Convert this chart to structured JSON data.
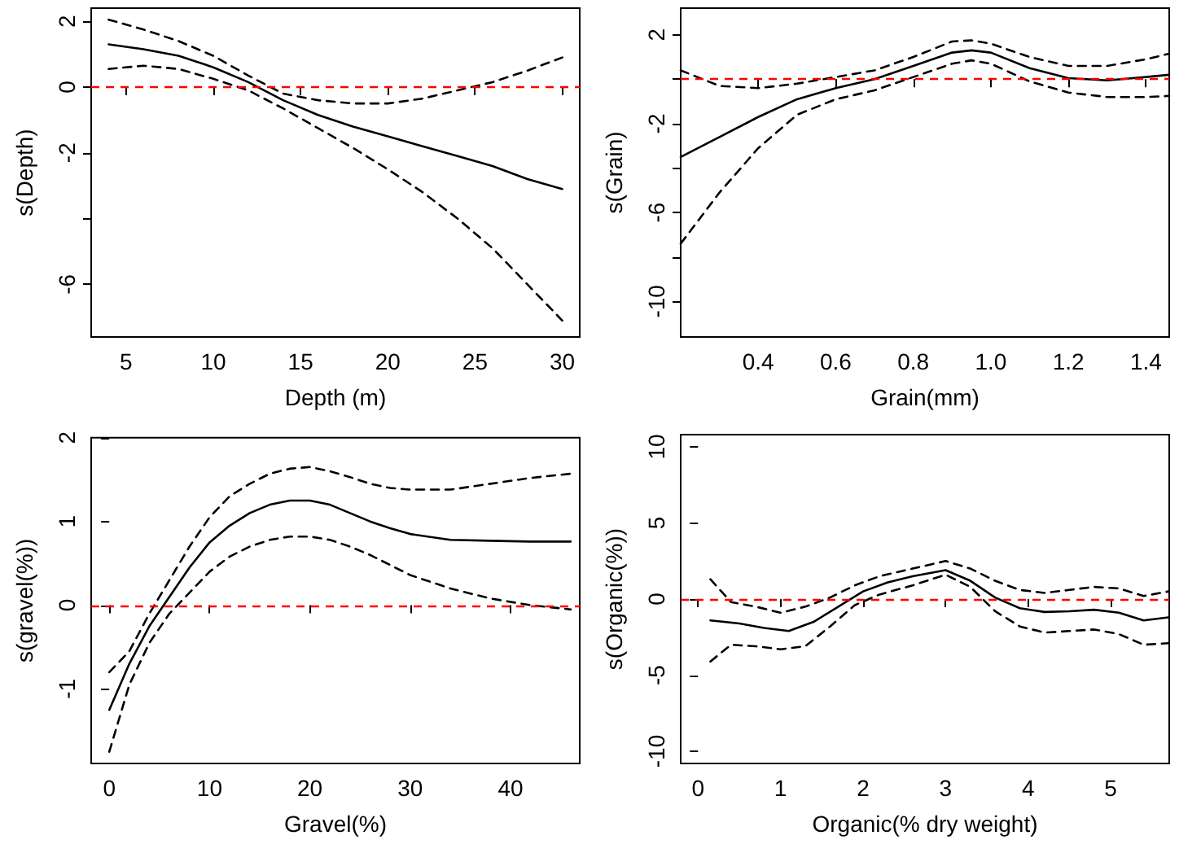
{
  "chart_data": [
    {
      "type": "line",
      "xlabel": "Depth (m)",
      "ylabel": "s(Depth)",
      "xlim": [
        3,
        31
      ],
      "ylim": [
        -7.6,
        2.4
      ],
      "xticks": [
        5,
        10,
        15,
        20,
        25,
        30
      ],
      "yticks": [
        2,
        0,
        -2,
        {
          "value": -4,
          "label": null
        },
        -6
      ],
      "series": [
        {
          "color": "#000000",
          "line_style": "solid",
          "x": [
            4,
            6,
            8,
            10,
            12,
            14,
            16,
            18,
            20,
            22,
            24,
            26,
            28,
            30
          ],
          "values": [
            1.3,
            1.15,
            0.95,
            0.6,
            0.15,
            -0.4,
            -0.85,
            -1.2,
            -1.5,
            -1.8,
            -2.1,
            -2.4,
            -2.8,
            -3.1
          ]
        },
        {
          "color": "#000000",
          "line_style": "dashed",
          "x": [
            4,
            6,
            8,
            10,
            12,
            14,
            16,
            18,
            20,
            22,
            24,
            26,
            28,
            30
          ],
          "values": [
            2.05,
            1.75,
            1.4,
            0.95,
            0.35,
            -0.2,
            -0.4,
            -0.5,
            -0.5,
            -0.35,
            -0.1,
            0.15,
            0.5,
            0.9
          ]
        },
        {
          "color": "#000000",
          "line_style": "dashed",
          "x": [
            4,
            6,
            8,
            10,
            12,
            14,
            16,
            18,
            20,
            22,
            24,
            26,
            28,
            30
          ],
          "values": [
            0.55,
            0.65,
            0.55,
            0.25,
            -0.1,
            -0.65,
            -1.25,
            -1.85,
            -2.5,
            -3.2,
            -4.0,
            -4.9,
            -6.0,
            -7.1
          ]
        }
      ],
      "ref_lines": [
        {
          "axis": "y",
          "value": 0,
          "color": "#ff0000",
          "line_style": "dashed"
        }
      ]
    },
    {
      "type": "line",
      "xlabel": "Grain(mm)",
      "ylabel": "s(Grain)",
      "xlim": [
        0.2,
        1.46
      ],
      "ylim": [
        -11.6,
        3.2
      ],
      "xticks": [
        0.4,
        0.6,
        0.8,
        {
          "value": 1,
          "label": "1.0"
        },
        1.2,
        1.4
      ],
      "yticks": [
        2,
        {
          "value": 0,
          "label": null
        },
        -2,
        {
          "value": -4,
          "label": null
        },
        -6,
        {
          "value": -8,
          "label": null
        },
        -10
      ],
      "series": [
        {
          "color": "#000000",
          "line_style": "solid",
          "x": [
            0.2,
            0.3,
            0.4,
            0.5,
            0.6,
            0.7,
            0.8,
            0.9,
            0.95,
            1.0,
            1.1,
            1.2,
            1.3,
            1.4,
            1.46
          ],
          "values": [
            -3.5,
            -2.6,
            -1.7,
            -0.9,
            -0.4,
            0.0,
            0.6,
            1.2,
            1.3,
            1.2,
            0.5,
            0.05,
            -0.05,
            0.1,
            0.2
          ]
        },
        {
          "color": "#000000",
          "line_style": "dashed",
          "x": [
            0.2,
            0.3,
            0.4,
            0.5,
            0.6,
            0.7,
            0.8,
            0.9,
            0.95,
            1.0,
            1.1,
            1.2,
            1.3,
            1.4,
            1.46
          ],
          "values": [
            0.4,
            -0.3,
            -0.4,
            -0.2,
            0.1,
            0.4,
            1.0,
            1.7,
            1.75,
            1.6,
            1.0,
            0.6,
            0.6,
            0.9,
            1.15
          ]
        },
        {
          "color": "#000000",
          "line_style": "dashed",
          "x": [
            0.2,
            0.3,
            0.4,
            0.5,
            0.6,
            0.7,
            0.8,
            0.9,
            0.95,
            1.0,
            1.1,
            1.2,
            1.3,
            1.4,
            1.46
          ],
          "values": [
            -7.4,
            -5.1,
            -3.1,
            -1.6,
            -0.9,
            -0.5,
            0.1,
            0.7,
            0.85,
            0.7,
            -0.1,
            -0.6,
            -0.8,
            -0.8,
            -0.75
          ]
        }
      ],
      "ref_lines": [
        {
          "axis": "y",
          "value": 0,
          "color": "#ff0000",
          "line_style": "dashed"
        }
      ]
    },
    {
      "type": "line",
      "xlabel": "Gravel(%)",
      "ylabel": "s(gravel(%))",
      "xlim": [
        -1.8,
        46.9
      ],
      "ylim": [
        -1.89,
        2
      ],
      "xticks": [
        0,
        10,
        20,
        30,
        40
      ],
      "yticks": [
        2,
        1,
        0,
        -1
      ],
      "series": [
        {
          "color": "#000000",
          "line_style": "solid",
          "x": [
            0,
            2,
            4,
            6,
            8,
            10,
            12,
            14,
            16,
            18,
            20,
            22,
            24,
            26,
            28,
            30,
            34,
            38,
            42,
            46
          ],
          "values": [
            -1.25,
            -0.7,
            -0.25,
            0.1,
            0.45,
            0.75,
            0.95,
            1.1,
            1.2,
            1.25,
            1.25,
            1.2,
            1.1,
            1.0,
            0.92,
            0.85,
            0.78,
            0.77,
            0.76,
            0.76
          ]
        },
        {
          "color": "#000000",
          "line_style": "dashed",
          "x": [
            0,
            2,
            4,
            6,
            8,
            10,
            12,
            14,
            16,
            18,
            20,
            22,
            24,
            26,
            28,
            30,
            34,
            38,
            42,
            46
          ],
          "values": [
            -0.8,
            -0.55,
            -0.1,
            0.3,
            0.7,
            1.05,
            1.3,
            1.45,
            1.57,
            1.63,
            1.65,
            1.6,
            1.53,
            1.45,
            1.4,
            1.38,
            1.38,
            1.45,
            1.52,
            1.57
          ]
        },
        {
          "color": "#000000",
          "line_style": "dashed",
          "x": [
            0,
            2,
            4,
            6,
            8,
            10,
            12,
            14,
            16,
            18,
            20,
            22,
            24,
            26,
            28,
            30,
            34,
            38,
            42,
            46
          ],
          "values": [
            -1.75,
            -0.95,
            -0.45,
            -0.1,
            0.15,
            0.4,
            0.58,
            0.7,
            0.78,
            0.82,
            0.82,
            0.78,
            0.7,
            0.6,
            0.48,
            0.36,
            0.2,
            0.08,
            0.0,
            -0.05
          ]
        }
      ],
      "ref_lines": [
        {
          "axis": "y",
          "value": 0,
          "color": "#ff0000",
          "line_style": "dashed"
        }
      ]
    },
    {
      "type": "line",
      "xlabel": "Organic(% dry weight)",
      "ylabel": "s(Organic(%))",
      "xlim": [
        -0.21,
        5.71
      ],
      "ylim": [
        -10.8,
        10.8
      ],
      "xticks": [
        0,
        1,
        2,
        3,
        4,
        5
      ],
      "yticks": [
        10,
        5,
        0,
        -5,
        -10
      ],
      "series": [
        {
          "color": "#000000",
          "line_style": "solid",
          "x": [
            0.15,
            0.5,
            0.8,
            1.1,
            1.4,
            1.7,
            2.0,
            2.3,
            2.6,
            3.0,
            3.3,
            3.6,
            3.9,
            4.2,
            4.5,
            4.8,
            5.1,
            5.4,
            5.7
          ],
          "values": [
            -1.4,
            -1.6,
            -1.9,
            -2.1,
            -1.5,
            -0.5,
            0.5,
            1.1,
            1.5,
            1.9,
            1.2,
            0.1,
            -0.6,
            -0.85,
            -0.8,
            -0.7,
            -0.9,
            -1.4,
            -1.2
          ]
        },
        {
          "color": "#000000",
          "line_style": "dashed",
          "x": [
            0.15,
            0.4,
            0.7,
            1.0,
            1.3,
            1.6,
            1.9,
            2.2,
            2.6,
            3.0,
            3.3,
            3.6,
            3.9,
            4.2,
            4.5,
            4.8,
            5.1,
            5.4,
            5.7
          ],
          "values": [
            1.3,
            -0.2,
            -0.5,
            -0.9,
            -0.5,
            0.1,
            0.9,
            1.5,
            2.0,
            2.5,
            2.0,
            1.2,
            0.6,
            0.4,
            0.6,
            0.8,
            0.7,
            0.2,
            0.5
          ]
        },
        {
          "color": "#000000",
          "line_style": "dashed",
          "x": [
            0.15,
            0.4,
            0.7,
            1.0,
            1.3,
            1.6,
            1.9,
            2.2,
            2.6,
            3.0,
            3.3,
            3.6,
            3.9,
            4.2,
            4.5,
            4.8,
            5.1,
            5.4,
            5.7
          ],
          "values": [
            -4.1,
            -3.0,
            -3.1,
            -3.3,
            -3.1,
            -1.8,
            -0.4,
            0.3,
            0.9,
            1.6,
            0.8,
            -0.8,
            -1.8,
            -2.2,
            -2.1,
            -2.0,
            -2.3,
            -3.0,
            -2.9
          ]
        }
      ],
      "ref_lines": [
        {
          "axis": "y",
          "value": 0,
          "color": "#ff0000",
          "line_style": "dashed"
        }
      ]
    }
  ]
}
